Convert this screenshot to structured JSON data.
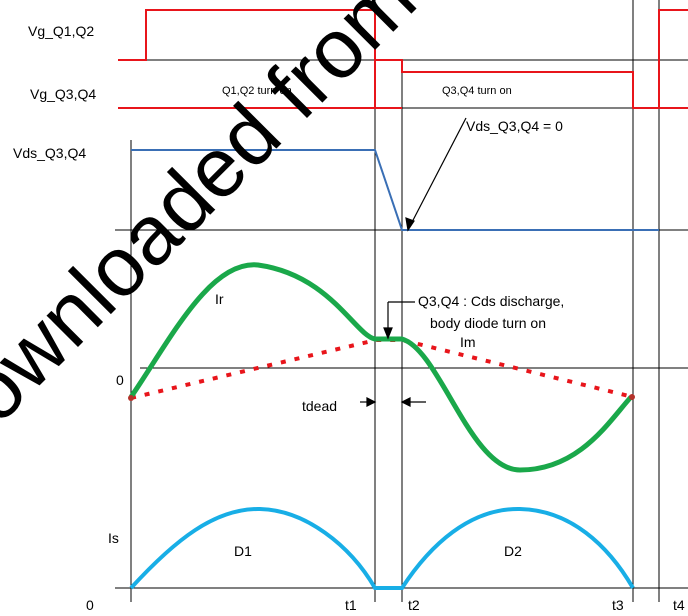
{
  "colors": {
    "gate": "#e8151b",
    "vds": "#3a6fb5",
    "ir": "#1aa84a",
    "im_dotted": "#e8151b",
    "is": "#18aee6",
    "axes": "#000000"
  },
  "labels": {
    "vg_q1q2": "Vg_Q1,Q2",
    "vg_q3q4": "Vg_Q3,Q4",
    "vds_q3q4": "Vds_Q3,Q4",
    "q1q2_on": "Q1,Q2 turn on",
    "q3q4_on": "Q3,Q4 turn on",
    "vds_zero": "Vds_Q3,Q4 = 0",
    "ir": "Ir",
    "cds_line1": "Q3,Q4 : Cds discharge,",
    "cds_line2": "body diode turn on",
    "im": "Im",
    "zero_mid": "0",
    "tdead": "tdead",
    "is": "Is",
    "d1": "D1",
    "d2": "D2",
    "zero_bottom": "0",
    "t1": "t1",
    "t2": "t2",
    "t3": "t3",
    "t4": "t4"
  },
  "watermark": "Downloaded from www"
}
